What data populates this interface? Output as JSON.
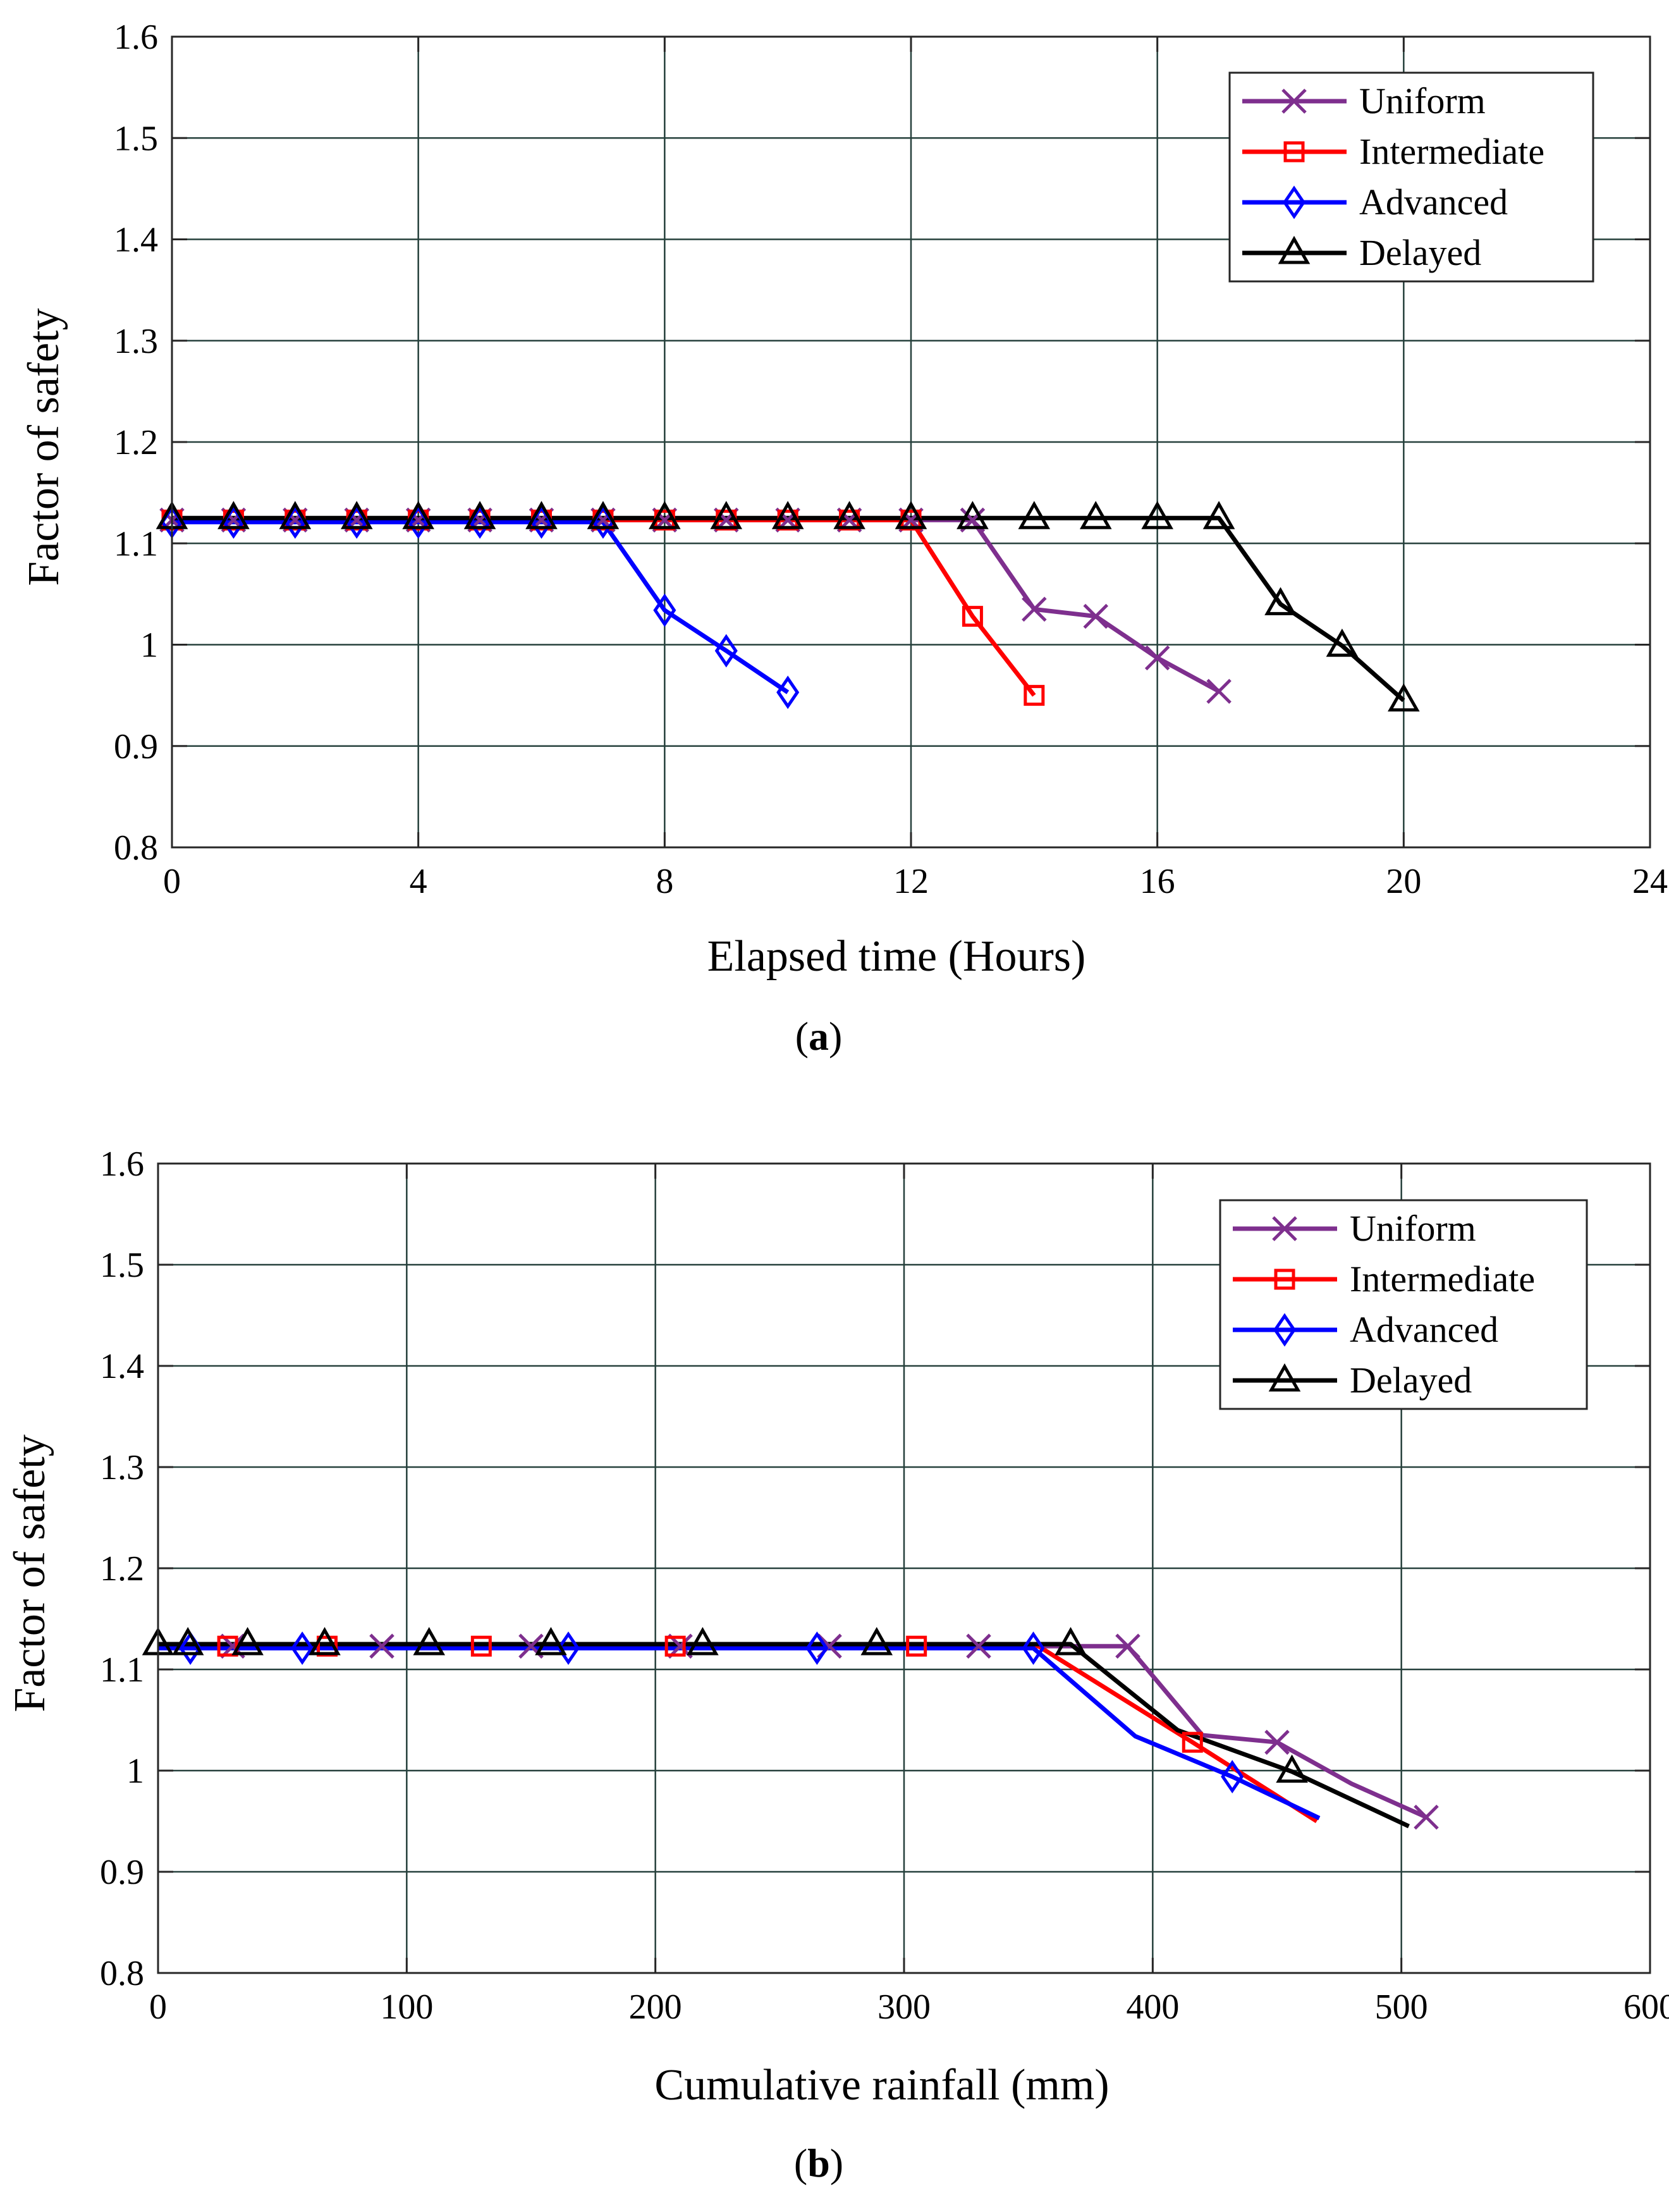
{
  "figure": {
    "panel_labels": [
      "a",
      "b"
    ],
    "colors": {
      "uniform": "#7e2f8e",
      "intermediate": "#ff0000",
      "advanced": "#0000ff",
      "delayed": "#000000",
      "grid": "#26403c",
      "axis": "#262626"
    }
  },
  "chart_data": [
    {
      "type": "line",
      "panel": "a",
      "xlabel": "Elapsed time (Hours)",
      "ylabel": "Factor of safety",
      "xlim": [
        0,
        24
      ],
      "ylim": [
        0.8,
        1.6
      ],
      "xticks": [
        0,
        4,
        8,
        12,
        16,
        20,
        24
      ],
      "xtick_labels": [
        "0",
        "4",
        "8",
        "12",
        "16",
        "20",
        "24"
      ],
      "yticks": [
        0.8,
        0.9,
        1.0,
        1.1,
        1.2,
        1.3,
        1.4,
        1.5,
        1.6
      ],
      "ytick_labels": [
        "0.8",
        "0.9",
        "1",
        "1.1",
        "1.2",
        "1.3",
        "1.4",
        "1.5",
        "1.6"
      ],
      "grid": true,
      "legend_position": "top-right",
      "series": [
        {
          "name": "Uniform",
          "color_key": "uniform",
          "marker": "x",
          "x": [
            0,
            1,
            2,
            3,
            4,
            5,
            6,
            7,
            8,
            9,
            10,
            11,
            12,
            13,
            14,
            15,
            16,
            17
          ],
          "y": [
            1.123,
            1.123,
            1.123,
            1.123,
            1.123,
            1.123,
            1.123,
            1.123,
            1.123,
            1.123,
            1.123,
            1.123,
            1.123,
            1.123,
            1.035,
            1.028,
            0.987,
            0.954
          ]
        },
        {
          "name": "Intermediate",
          "color_key": "intermediate",
          "marker": "square",
          "x": [
            0,
            1,
            2,
            3,
            4,
            5,
            6,
            7,
            8,
            9,
            10,
            11,
            12,
            13,
            14
          ],
          "y": [
            1.123,
            1.123,
            1.123,
            1.123,
            1.123,
            1.123,
            1.123,
            1.123,
            1.123,
            1.123,
            1.123,
            1.123,
            1.123,
            1.028,
            0.95
          ]
        },
        {
          "name": "Advanced",
          "color_key": "advanced",
          "marker": "diamond",
          "x": [
            0,
            1,
            2,
            3,
            4,
            5,
            6,
            7,
            8,
            9,
            10
          ],
          "y": [
            1.121,
            1.121,
            1.121,
            1.121,
            1.121,
            1.121,
            1.121,
            1.121,
            1.034,
            0.994,
            0.953
          ]
        },
        {
          "name": "Delayed",
          "color_key": "delayed",
          "marker": "triangle",
          "x": [
            0,
            1,
            2,
            3,
            4,
            5,
            6,
            7,
            8,
            9,
            10,
            11,
            12,
            13,
            14,
            15,
            16,
            17,
            18,
            19,
            20
          ],
          "y": [
            1.125,
            1.125,
            1.125,
            1.125,
            1.125,
            1.125,
            1.125,
            1.125,
            1.125,
            1.125,
            1.125,
            1.125,
            1.125,
            1.125,
            1.125,
            1.125,
            1.125,
            1.125,
            1.04,
            0.999,
            0.945
          ]
        }
      ]
    },
    {
      "type": "line",
      "panel": "b",
      "xlabel": "Cumulative rainfall (mm)",
      "ylabel": "Factor of safety",
      "xlim": [
        0,
        600
      ],
      "ylim": [
        0.8,
        1.6
      ],
      "xticks": [
        0,
        100,
        200,
        300,
        400,
        500,
        600
      ],
      "xtick_labels": [
        "0",
        "100",
        "200",
        "300",
        "400",
        "500",
        "600"
      ],
      "yticks": [
        0.8,
        0.9,
        1.0,
        1.1,
        1.2,
        1.3,
        1.4,
        1.5,
        1.6
      ],
      "ytick_labels": [
        "0.8",
        "0.9",
        "1",
        "1.1",
        "1.2",
        "1.3",
        "1.4",
        "1.5",
        "1.6"
      ],
      "grid": true,
      "legend_position": "top-right",
      "series": [
        {
          "name": "Uniform",
          "color_key": "uniform",
          "marker": "x",
          "x": [
            0,
            30,
            60,
            90,
            120,
            150,
            180,
            210,
            240,
            270,
            300,
            330,
            360,
            390,
            420,
            450,
            480,
            510
          ],
          "y": [
            1.123,
            1.123,
            1.123,
            1.123,
            1.123,
            1.123,
            1.123,
            1.123,
            1.123,
            1.123,
            1.123,
            1.123,
            1.123,
            1.123,
            1.035,
            1.028,
            0.987,
            0.954
          ],
          "marker_every": 2,
          "marker_offset": 1
        },
        {
          "name": "Intermediate",
          "color_key": "intermediate",
          "marker": "square",
          "x": [
            0,
            28,
            68,
            130,
            208,
            305,
            354,
            416,
            466
          ],
          "y": [
            1.123,
            1.123,
            1.123,
            1.123,
            1.123,
            1.123,
            1.123,
            1.028,
            0.95
          ],
          "marker_indices": [
            1,
            2,
            3,
            4,
            5,
            7
          ]
        },
        {
          "name": "Advanced",
          "color_key": "advanced",
          "marker": "diamond",
          "x": [
            0,
            13,
            58,
            165,
            265,
            352,
            393,
            432,
            467
          ],
          "y": [
            1.121,
            1.121,
            1.121,
            1.121,
            1.121,
            1.121,
            1.034,
            0.994,
            0.953
          ],
          "marker_indices": [
            1,
            2,
            3,
            4,
            5,
            7
          ]
        },
        {
          "name": "Delayed",
          "color_key": "delayed",
          "marker": "triangle",
          "x": [
            0,
            12,
            36,
            67,
            109,
            158,
            219,
            289,
            367,
            410,
            456,
            503
          ],
          "y": [
            1.125,
            1.125,
            1.125,
            1.125,
            1.125,
            1.125,
            1.125,
            1.125,
            1.125,
            1.04,
            0.999,
            0.945
          ],
          "marker_indices": [
            0,
            1,
            2,
            3,
            4,
            5,
            6,
            7,
            8,
            10
          ]
        }
      ]
    }
  ]
}
